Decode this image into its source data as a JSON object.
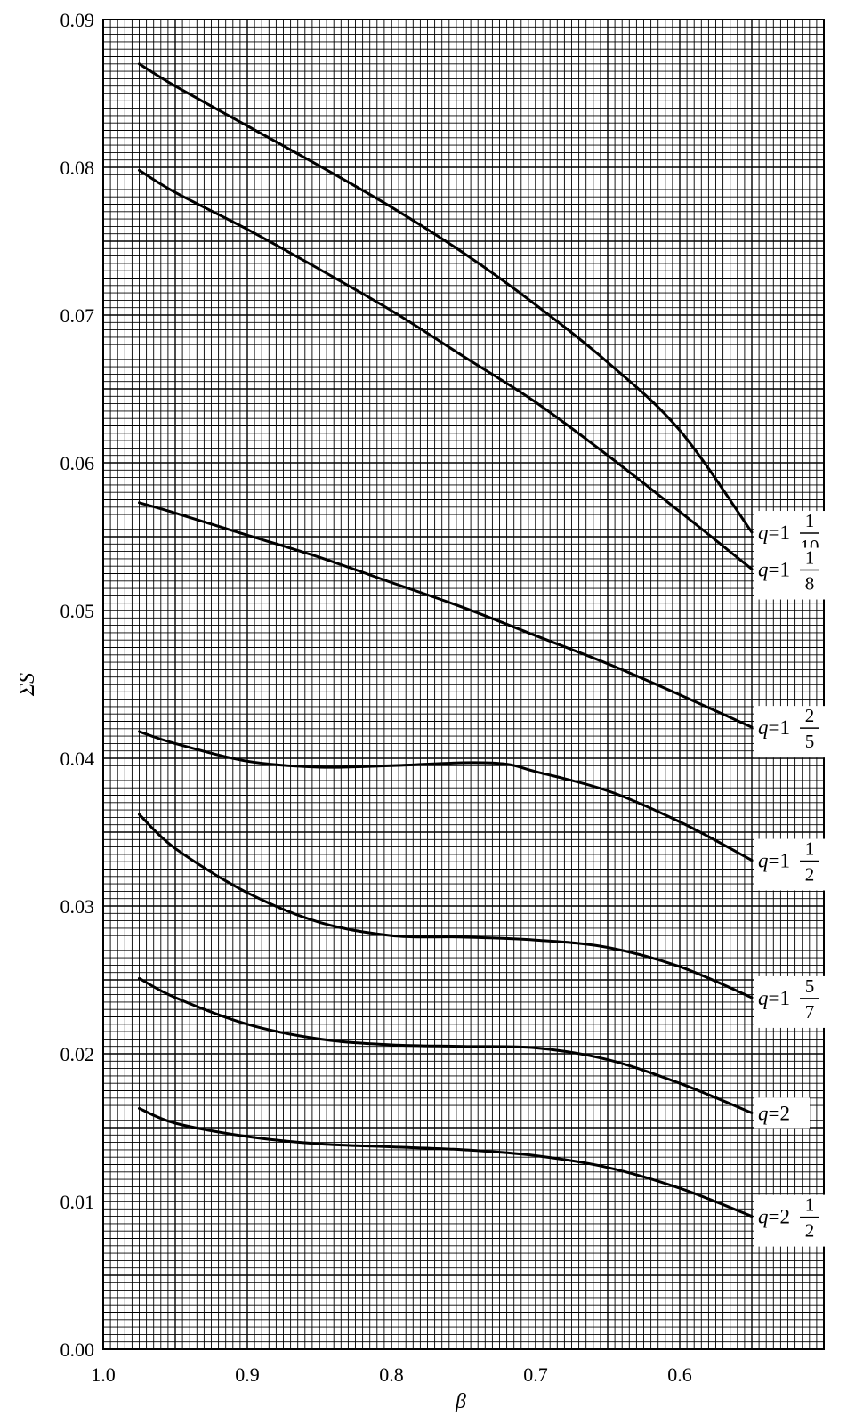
{
  "chart_data": {
    "type": "line",
    "title": "",
    "xlabel": "β",
    "ylabel": "ΣS",
    "xlim": [
      1.0,
      0.5
    ],
    "x_reversed": true,
    "ylim": [
      0.0,
      0.09
    ],
    "grid": true,
    "legend": "inline-right",
    "x_ticks": [
      "1.0",
      "0.9",
      "0.8",
      "0.7",
      "0.6"
    ],
    "x_tick_values": [
      1.0,
      0.9,
      0.8,
      0.7,
      0.6
    ],
    "y_ticks": [
      "0.00",
      "0.01",
      "0.02",
      "0.03",
      "0.04",
      "0.05",
      "0.06",
      "0.07",
      "0.08",
      "0.09"
    ],
    "y_tick_values": [
      0.0,
      0.01,
      0.02,
      0.03,
      0.04,
      0.05,
      0.06,
      0.07,
      0.08,
      0.09
    ],
    "series": [
      {
        "label_var": "q",
        "label_whole": "=1",
        "label_num": "1",
        "label_den": "10",
        "x": [
          0.975,
          0.95,
          0.9,
          0.85,
          0.8,
          0.75,
          0.7,
          0.65,
          0.6,
          0.55
        ],
        "y": [
          0.087,
          0.0855,
          0.0828,
          0.0801,
          0.0773,
          0.0742,
          0.0707,
          0.0668,
          0.0622,
          0.0553
        ]
      },
      {
        "label_var": "q",
        "label_whole": "=1",
        "label_num": "1",
        "label_den": "8",
        "x": [
          0.975,
          0.95,
          0.9,
          0.85,
          0.8,
          0.75,
          0.7,
          0.65,
          0.6,
          0.55
        ],
        "y": [
          0.0798,
          0.0783,
          0.0758,
          0.0731,
          0.0703,
          0.0672,
          0.0641,
          0.0605,
          0.0567,
          0.0528
        ]
      },
      {
        "label_var": "q",
        "label_whole": "=1",
        "label_num": "2",
        "label_den": "5",
        "x": [
          0.975,
          0.95,
          0.9,
          0.85,
          0.8,
          0.75,
          0.7,
          0.65,
          0.6,
          0.55
        ],
        "y": [
          0.0573,
          0.0566,
          0.0551,
          0.0536,
          0.0519,
          0.0502,
          0.0483,
          0.0464,
          0.0443,
          0.0421
        ]
      },
      {
        "label_var": "q",
        "label_whole": "=1",
        "label_num": "1",
        "label_den": "2",
        "x": [
          0.975,
          0.95,
          0.9,
          0.85,
          0.8,
          0.75,
          0.72,
          0.7,
          0.65,
          0.6,
          0.55
        ],
        "y": [
          0.0418,
          0.041,
          0.0398,
          0.0394,
          0.0395,
          0.0397,
          0.0396,
          0.0391,
          0.0378,
          0.0357,
          0.0331
        ]
      },
      {
        "label_var": "q",
        "label_whole": "=1",
        "label_num": "5",
        "label_den": "7",
        "x": [
          0.975,
          0.95,
          0.9,
          0.85,
          0.8,
          0.75,
          0.7,
          0.65,
          0.6,
          0.55
        ],
        "y": [
          0.0362,
          0.0339,
          0.0309,
          0.0289,
          0.028,
          0.0279,
          0.0277,
          0.0272,
          0.0259,
          0.0238
        ]
      },
      {
        "label_var": "q",
        "label_whole": "=2",
        "label_num": "",
        "label_den": "",
        "x": [
          0.975,
          0.95,
          0.9,
          0.85,
          0.8,
          0.75,
          0.7,
          0.65,
          0.6,
          0.55
        ],
        "y": [
          0.0251,
          0.0238,
          0.022,
          0.021,
          0.0206,
          0.0205,
          0.0204,
          0.0196,
          0.018,
          0.016
        ]
      },
      {
        "label_var": "q",
        "label_whole": "=2",
        "label_num": "1",
        "label_den": "2",
        "x": [
          0.975,
          0.95,
          0.9,
          0.85,
          0.8,
          0.75,
          0.7,
          0.65,
          0.6,
          0.55
        ],
        "y": [
          0.0163,
          0.0153,
          0.0144,
          0.0139,
          0.0137,
          0.0135,
          0.0131,
          0.0123,
          0.0109,
          0.009
        ]
      }
    ]
  }
}
